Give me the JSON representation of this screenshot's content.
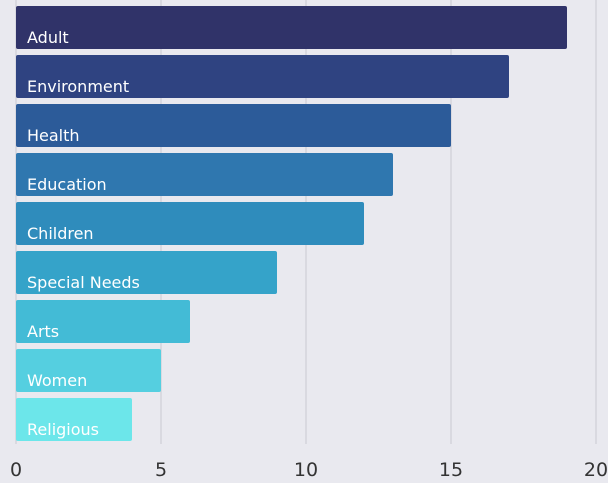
{
  "chart_data": {
    "type": "bar",
    "orientation": "horizontal",
    "categories": [
      "Adult",
      "Environment",
      "Health",
      "Education",
      "Children",
      "Special Needs",
      "Arts",
      "Women",
      "Religious"
    ],
    "values": [
      19,
      17,
      15,
      13,
      12,
      9,
      6,
      5,
      4
    ],
    "colors": [
      "#303369",
      "#2f4381",
      "#2c5b99",
      "#2f77af",
      "#2f8cbc",
      "#35a3c9",
      "#43bbd6",
      "#55cfe0",
      "#6ce6ea"
    ],
    "xlim": [
      0,
      20
    ],
    "x_ticks": [
      0,
      5,
      10,
      15,
      20
    ],
    "grid": true,
    "title": "",
    "xlabel": "",
    "ylabel": ""
  }
}
